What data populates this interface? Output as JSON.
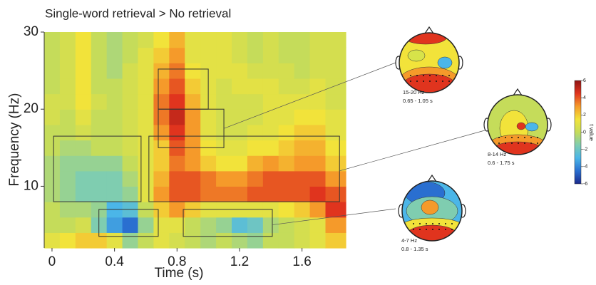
{
  "chart_data": {
    "type": "heatmap",
    "title": "Single-word retrieval > No retrieval",
    "xlabel": "Time (s)",
    "ylabel": "Frequency (Hz)",
    "xlim": [
      -0.05,
      1.88
    ],
    "ylim": [
      2,
      30
    ],
    "xticks": [
      0,
      0.4,
      0.8,
      1.2,
      1.6
    ],
    "yticks": [
      10,
      20,
      30
    ],
    "x_edges": [
      -0.05,
      0.05,
      0.15,
      0.25,
      0.35,
      0.45,
      0.55,
      0.65,
      0.75,
      0.85,
      0.95,
      1.05,
      1.15,
      1.25,
      1.35,
      1.45,
      1.55,
      1.65,
      1.75,
      1.88
    ],
    "y_edges": [
      2,
      4,
      6,
      8,
      10,
      12,
      14,
      16,
      18,
      20,
      22,
      24,
      26,
      28,
      30
    ],
    "z": [
      [
        1,
        1.5,
        2,
        2,
        1,
        -1,
        0,
        1,
        0.5,
        0,
        -0.5,
        0,
        -0.5,
        -1,
        0,
        0,
        0.5,
        1,
        2
      ],
      [
        0,
        0,
        0.5,
        -1.5,
        -3.5,
        -4.5,
        -1,
        1,
        1,
        0,
        -0.5,
        -1,
        -2.5,
        -2,
        -0.5,
        0,
        0.5,
        1,
        3
      ],
      [
        0,
        -0.5,
        -0.5,
        -1,
        -3,
        -2.5,
        0,
        2,
        3,
        2,
        1,
        1,
        1,
        1,
        1,
        1.5,
        2,
        3,
        4.5
      ],
      [
        -0.5,
        -1,
        -1.5,
        -1.5,
        -1.5,
        -1,
        1,
        3,
        4,
        4,
        3.5,
        3.5,
        3.5,
        4,
        4,
        4,
        4,
        4.5,
        4
      ],
      [
        -0.5,
        -1,
        -1.5,
        -1.5,
        -1.5,
        -0.5,
        1,
        2.5,
        4,
        4,
        3.5,
        3,
        3,
        3.5,
        4,
        4,
        4,
        4,
        3
      ],
      [
        -0.5,
        -1,
        -1,
        -1,
        -1,
        0,
        1,
        2,
        3.5,
        3,
        2,
        1.5,
        1.5,
        2.5,
        3,
        2.5,
        3,
        3,
        2
      ],
      [
        0,
        -0.5,
        -0.5,
        0,
        0,
        0.5,
        1,
        2,
        4,
        3,
        1.5,
        1,
        1,
        1.5,
        1.5,
        2,
        2.5,
        2.5,
        1.5
      ],
      [
        0,
        0,
        0.5,
        0,
        0,
        0.5,
        1,
        3,
        4.5,
        3,
        1,
        0.5,
        0.5,
        1,
        1,
        1.5,
        2,
        2,
        1
      ],
      [
        0.5,
        0,
        1,
        0,
        0,
        0.5,
        1,
        3.5,
        5,
        3,
        1,
        0.5,
        0.5,
        0.5,
        1,
        1,
        1.5,
        1.5,
        1
      ],
      [
        0.5,
        0.5,
        1.5,
        0.5,
        0,
        0.5,
        1,
        3.5,
        4.5,
        2.5,
        1,
        0.5,
        0.5,
        0.5,
        1,
        1,
        1,
        1,
        0.5
      ],
      [
        0,
        0.5,
        1.5,
        0,
        0,
        0.5,
        1,
        3,
        4,
        2,
        1,
        0.5,
        1,
        1,
        1,
        0.5,
        0.5,
        1,
        0.5
      ],
      [
        0,
        0.5,
        1.5,
        0,
        -0.5,
        0.5,
        1,
        2.5,
        3.5,
        1.5,
        1,
        1,
        1,
        0.5,
        0.5,
        0.5,
        0,
        0.5,
        0.5
      ],
      [
        0,
        0.5,
        1.5,
        0,
        -0.5,
        0,
        1,
        2,
        3,
        1,
        1,
        1,
        0.5,
        0,
        0.5,
        0,
        0,
        0.5,
        0.5
      ],
      [
        0,
        0.5,
        1.5,
        0,
        -0.5,
        0,
        0.5,
        1.5,
        2.5,
        1,
        1,
        1,
        0.5,
        0,
        0.5,
        0,
        0,
        0.5,
        0.5
      ]
    ],
    "clim": [
      -6,
      6
    ],
    "colors": [
      "#1b2a8c",
      "#2a6fd0",
      "#4bb6e8",
      "#7fcdb0",
      "#c5dc5a",
      "#f2e33a",
      "#f59a2a",
      "#e0341e",
      "#8e1414"
    ],
    "colorbar": {
      "label": "t value",
      "ticks": [
        6,
        4,
        2,
        0,
        -2,
        -4,
        -6
      ]
    },
    "regions": [
      {
        "x": [
          0.01,
          0.57
        ],
        "y": [
          8,
          16.5
        ]
      },
      {
        "x": [
          0.3,
          0.68
        ],
        "y": [
          3.5,
          7
        ]
      },
      {
        "x": [
          0.68,
          1.0
        ],
        "y": [
          20,
          25.2
        ]
      },
      {
        "x": [
          0.68,
          1.1
        ],
        "y": [
          15,
          20
        ]
      },
      {
        "x": [
          0.62,
          1.84
        ],
        "y": [
          8,
          16.5
        ]
      },
      {
        "x": [
          0.84,
          1.41
        ],
        "y": [
          3.5,
          7
        ]
      }
    ],
    "topoplots": [
      {
        "freq": "15-20 Hz",
        "time": "0.65 - 1.05 s"
      },
      {
        "freq": "8-14 Hz",
        "time": "0.6 - 1.75 s"
      },
      {
        "freq": "4-7 Hz",
        "time": "0.8 - 1.35 s"
      }
    ]
  }
}
